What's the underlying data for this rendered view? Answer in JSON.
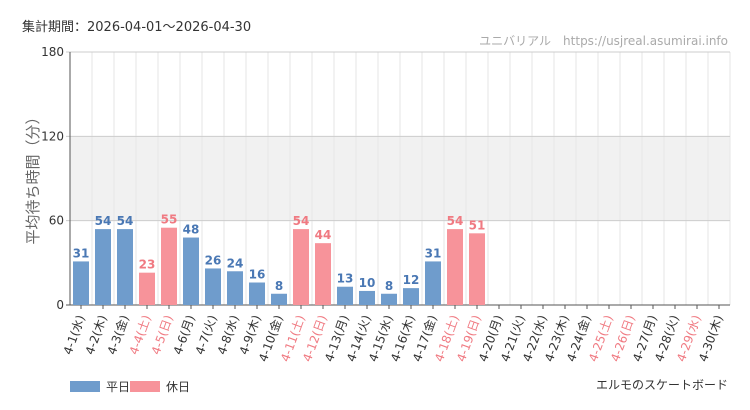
{
  "header": {
    "period": "集計期間：2026-04-01～2026-04-30",
    "source": "ユニバリアル　https://usjreal.asumirai.info"
  },
  "footer": {
    "subject": "エルモのスケートボード"
  },
  "legend": [
    {
      "label": "平日",
      "color": "#6f9ccc"
    },
    {
      "label": "休日",
      "color": "#f7939a"
    }
  ],
  "colors": {
    "weekday": "#6f9ccc",
    "holiday": "#f7939a",
    "weekday_text": "#4a78b4",
    "holiday_text": "#f07a82",
    "band": "#f1f1f1",
    "grid": "#e6e6e6"
  },
  "chart_data": {
    "type": "bar",
    "ylabel": "平均待ち時間（分）",
    "ylim": [
      0,
      180
    ],
    "yticks": [
      0,
      60,
      120,
      180
    ],
    "band": [
      60,
      120
    ],
    "grid": true,
    "legend_position": "bottom-left",
    "categories": [
      "4-1(水)",
      "4-2(木)",
      "4-3(金)",
      "4-4(土)",
      "4-5(日)",
      "4-6(月)",
      "4-7(火)",
      "4-8(水)",
      "4-9(木)",
      "4-10(金)",
      "4-11(土)",
      "4-12(日)",
      "4-13(月)",
      "4-14(火)",
      "4-15(水)",
      "4-16(木)",
      "4-17(金)",
      "4-18(土)",
      "4-19(日)",
      "4-20(月)",
      "4-21(火)",
      "4-22(水)",
      "4-23(木)",
      "4-24(金)",
      "4-25(土)",
      "4-26(日)",
      "4-27(月)",
      "4-28(火)",
      "4-29(水)",
      "4-30(木)"
    ],
    "values": [
      31,
      54,
      54,
      23,
      55,
      48,
      26,
      24,
      16,
      8,
      54,
      44,
      13,
      10,
      8,
      12,
      31,
      54,
      51,
      null,
      null,
      null,
      null,
      null,
      null,
      null,
      null,
      null,
      null,
      null
    ],
    "day_type": [
      "平日",
      "平日",
      "平日",
      "休日",
      "休日",
      "平日",
      "平日",
      "平日",
      "平日",
      "平日",
      "休日",
      "休日",
      "平日",
      "平日",
      "平日",
      "平日",
      "平日",
      "休日",
      "休日",
      "平日",
      "平日",
      "平日",
      "平日",
      "平日",
      "休日",
      "休日",
      "平日",
      "平日",
      "休日",
      "平日"
    ]
  }
}
